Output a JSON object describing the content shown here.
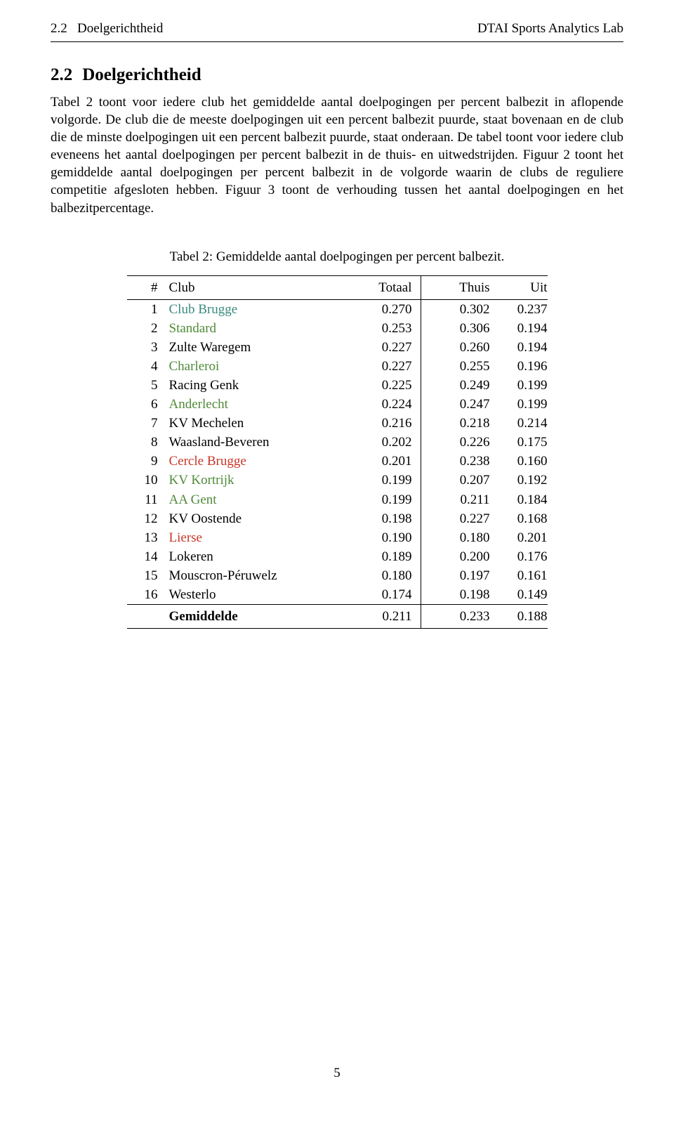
{
  "header": {
    "left_section": "2.2",
    "left_title": "Doelgerichtheid",
    "right_text": "DTAI Sports Analytics Lab"
  },
  "section": {
    "number": "2.2",
    "title": "Doelgerichtheid"
  },
  "paragraph": "Tabel 2 toont voor iedere club het gemiddelde aantal doelpogingen per percent balbezit in aflopende volgorde. De club die de meeste doelpogingen uit een percent balbezit puurde, staat bovenaan en de club die de minste doelpogingen uit een percent balbezit puurde, staat onderaan. De tabel toont voor iedere club eveneens het aantal doelpogingen per percent balbezit in de thuis- en uitwedstrijden. Figuur 2 toont het gemiddelde aantal doelpogingen per percent balbezit in de volgorde waarin de clubs de reguliere competitie afgesloten hebben. Figuur 3 toont de verhouding tussen het aantal doelpogingen en het balbezitpercentage.",
  "table": {
    "caption": "Tabel 2: Gemiddelde aantal doelpogingen per percent balbezit.",
    "columns": {
      "rank": "#",
      "club": "Club",
      "totaal": "Totaal",
      "thuis": "Thuis",
      "uit": "Uit"
    },
    "club_colors": {
      "default": "#000000",
      "green": "#4f8a38",
      "teal": "#3a8a7d",
      "red": "#c83728"
    },
    "rows": [
      {
        "rank": "1",
        "club": "Club Brugge",
        "color": "teal",
        "totaal": "0.270",
        "thuis": "0.302",
        "uit": "0.237"
      },
      {
        "rank": "2",
        "club": "Standard",
        "color": "green",
        "totaal": "0.253",
        "thuis": "0.306",
        "uit": "0.194"
      },
      {
        "rank": "3",
        "club": "Zulte Waregem",
        "color": "default",
        "totaal": "0.227",
        "thuis": "0.260",
        "uit": "0.194"
      },
      {
        "rank": "4",
        "club": "Charleroi",
        "color": "green",
        "totaal": "0.227",
        "thuis": "0.255",
        "uit": "0.196"
      },
      {
        "rank": "5",
        "club": "Racing Genk",
        "color": "default",
        "totaal": "0.225",
        "thuis": "0.249",
        "uit": "0.199"
      },
      {
        "rank": "6",
        "club": "Anderlecht",
        "color": "green",
        "totaal": "0.224",
        "thuis": "0.247",
        "uit": "0.199"
      },
      {
        "rank": "7",
        "club": "KV Mechelen",
        "color": "default",
        "totaal": "0.216",
        "thuis": "0.218",
        "uit": "0.214"
      },
      {
        "rank": "8",
        "club": "Waasland-Beveren",
        "color": "default",
        "totaal": "0.202",
        "thuis": "0.226",
        "uit": "0.175"
      },
      {
        "rank": "9",
        "club": "Cercle Brugge",
        "color": "red",
        "totaal": "0.201",
        "thuis": "0.238",
        "uit": "0.160"
      },
      {
        "rank": "10",
        "club": "KV Kortrijk",
        "color": "green",
        "totaal": "0.199",
        "thuis": "0.207",
        "uit": "0.192"
      },
      {
        "rank": "11",
        "club": "AA Gent",
        "color": "green",
        "totaal": "0.199",
        "thuis": "0.211",
        "uit": "0.184"
      },
      {
        "rank": "12",
        "club": "KV Oostende",
        "color": "default",
        "totaal": "0.198",
        "thuis": "0.227",
        "uit": "0.168"
      },
      {
        "rank": "13",
        "club": "Lierse",
        "color": "red",
        "totaal": "0.190",
        "thuis": "0.180",
        "uit": "0.201"
      },
      {
        "rank": "14",
        "club": "Lokeren",
        "color": "default",
        "totaal": "0.189",
        "thuis": "0.200",
        "uit": "0.176"
      },
      {
        "rank": "15",
        "club": "Mouscron-Péruwelz",
        "color": "default",
        "totaal": "0.180",
        "thuis": "0.197",
        "uit": "0.161"
      },
      {
        "rank": "16",
        "club": "Westerlo",
        "color": "default",
        "totaal": "0.174",
        "thuis": "0.198",
        "uit": "0.149"
      }
    ],
    "footer": {
      "label": "Gemiddelde",
      "totaal": "0.211",
      "thuis": "0.233",
      "uit": "0.188"
    }
  },
  "page_number": "5"
}
